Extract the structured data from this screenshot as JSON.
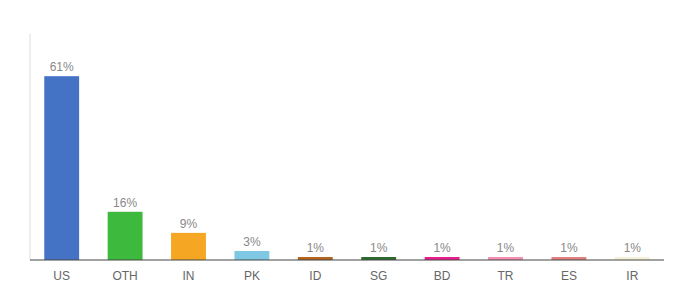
{
  "chart_data": {
    "type": "bar",
    "categories": [
      "US",
      "OTH",
      "IN",
      "PK",
      "ID",
      "SG",
      "BD",
      "TR",
      "ES",
      "IR"
    ],
    "values": [
      61,
      16,
      9,
      3,
      1,
      1,
      1,
      1,
      1,
      1
    ],
    "value_labels": [
      "61%",
      "16%",
      "9%",
      "3%",
      "1%",
      "1%",
      "1%",
      "1%",
      "1%",
      "1%"
    ],
    "colors": [
      "#4472c4",
      "#3dba3d",
      "#f5a623",
      "#7ec8e3",
      "#b5651d",
      "#2d6a2d",
      "#e91e8c",
      "#f48fb1",
      "#e08080",
      "#f5f0d8"
    ],
    "ylim": [
      0,
      75
    ],
    "data_labels": true,
    "tick_labels": "x",
    "grid": false
  }
}
